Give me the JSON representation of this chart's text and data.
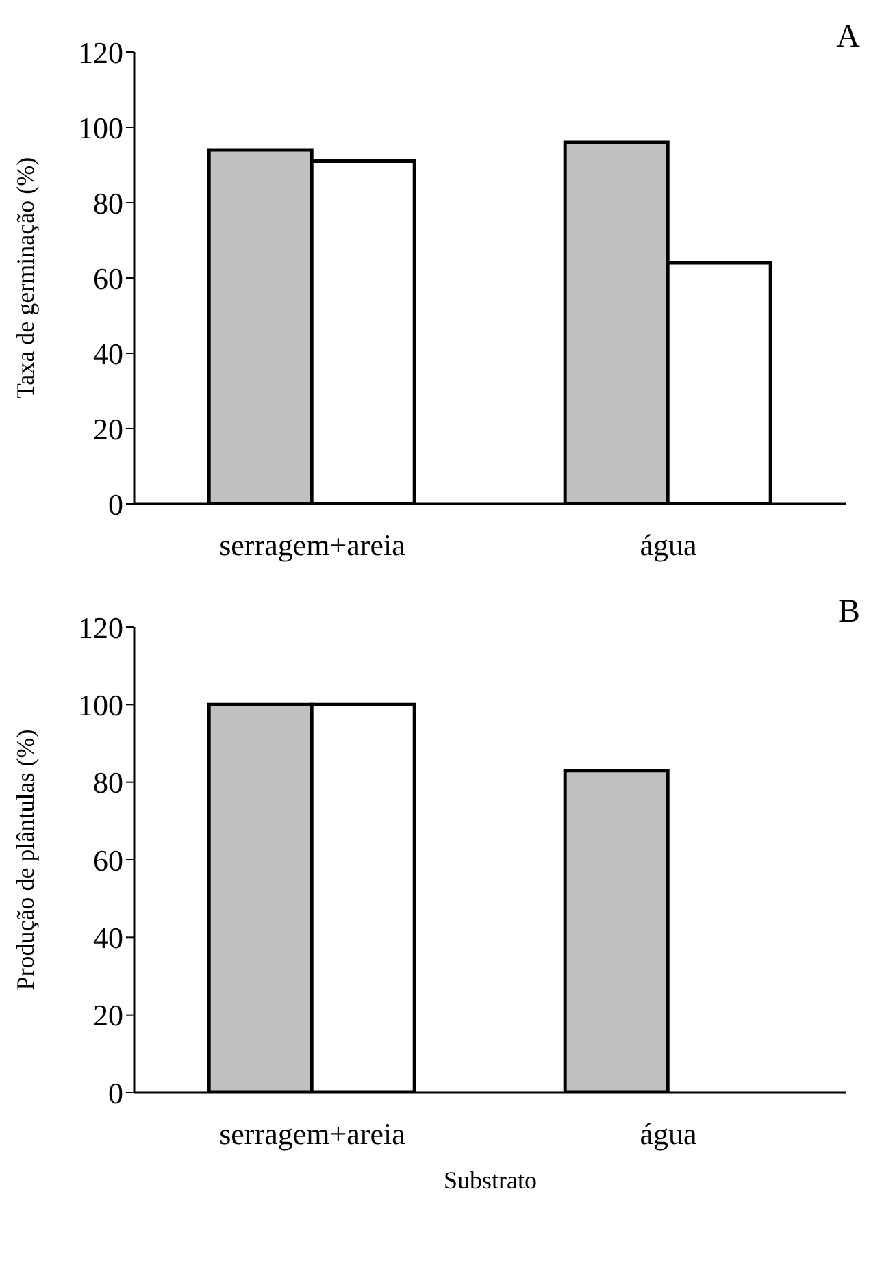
{
  "chart_data": [
    {
      "type": "bar",
      "title": "A",
      "ylabel": "Taxa de germinação (%)",
      "categories": [
        "serragem+areia",
        "água"
      ],
      "series": [
        {
          "color": "#c0c0c0",
          "values": [
            94,
            96
          ]
        },
        {
          "color": "#ffffff",
          "values": [
            91,
            64
          ]
        }
      ],
      "ylim": [
        0,
        120
      ],
      "yticks": [
        0,
        20,
        40,
        60,
        80,
        100,
        120
      ],
      "grid": false,
      "legend": false
    },
    {
      "type": "bar",
      "title": "B",
      "xlabel": "Substrato",
      "ylabel": "Produção de plântulas (%)",
      "categories": [
        "serragem+areia",
        "água"
      ],
      "series": [
        {
          "color": "#c0c0c0",
          "values": [
            100,
            83
          ]
        },
        {
          "color": "#ffffff",
          "values": [
            100,
            0
          ]
        }
      ],
      "ylim": [
        0,
        120
      ],
      "yticks": [
        0,
        20,
        40,
        60,
        80,
        100,
        120
      ],
      "grid": false,
      "legend": false
    }
  ]
}
